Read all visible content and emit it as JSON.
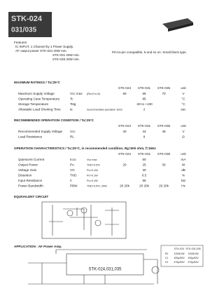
{
  "header": {
    "title": "STK-024",
    "subtitle": "031/035"
  },
  "features": {
    "heading": "Features",
    "items": [
      "IC INPUT, 1 Channel by 1 Power Supply.",
      "AF output power  STK-024  20W min.",
      "STK-031  25W min.",
      "STK-035  30W min."
    ],
    "note": "Pin-to-pin compatible, 6 and so on. Small block type."
  },
  "max_ratings": {
    "title": "MAXIMUM RATINGS / Ta=25°C",
    "columns": [
      "STK-024",
      "STK-031",
      "STK-035",
      "unit"
    ],
    "rows": [
      {
        "name": "Maximum Supply Voltage",
        "symbol": "Vcc max",
        "conditions": "(Rs=0 to 8)",
        "values": [
          "60",
          "56",
          "70"
        ],
        "unit": "V"
      },
      {
        "name": "Operating Case Temperature",
        "symbol": "Tc",
        "values": [
          "85"
        ],
        "unit": "°C"
      },
      {
        "name": "Storage Temperature",
        "symbol": "Tstg",
        "values": [
          "-30 to +100"
        ],
        "unit": "°C"
      },
      {
        "name": "Allowable Load Shorting Time",
        "symbol": "ts",
        "conditions": "recommended operation 1kHz",
        "values": [
          "2"
        ],
        "unit": "sec"
      }
    ]
  },
  "recommended": {
    "title": "RECOMMENDED OPERATION CONDITION / Ta=25°C",
    "columns": [
      "STK-024",
      "STK-031",
      "STK-035",
      "unit"
    ],
    "rows": [
      {
        "name": "Recommended Supply Voltage",
        "symbol": "Vcc",
        "values": [
          "40",
          "44",
          "48"
        ],
        "unit": "V"
      },
      {
        "name": "Load Resistance",
        "symbol": "RL",
        "values": [
          "8"
        ],
        "unit": "Ω"
      }
    ]
  },
  "operation": {
    "title": "OPERATION CHARACTERISTICS / Ta=25°C, in recommended condition, Rg=600 ohm, f=1kHz",
    "columns": [
      "STK-024",
      "STK-031",
      "STK-035",
      "unit"
    ],
    "rows": [
      {
        "name": "Quiescent Current",
        "symbol": "Icco",
        "conditions": "Vcc max",
        "values": [
          "60"
        ],
        "unit": "mA"
      },
      {
        "name": "Output Power",
        "symbol": "Po",
        "conditions": "THD=0.5%",
        "values": [
          "20",
          "25",
          "30"
        ],
        "unit": "W"
      },
      {
        "name": "Voltage Gain",
        "symbol": "VG",
        "conditions": "Po=0.1W",
        "values": [
          "30"
        ],
        "unit": "dB"
      },
      {
        "name": "Distortion",
        "symbol": "THD",
        "conditions": "Po=0.1W",
        "values": [
          "0.5"
        ],
        "unit": "%"
      },
      {
        "name": "Input Resistance",
        "symbol": "ri",
        "conditions": "Po=0.1W",
        "values": [
          "55"
        ],
        "unit": "kΩ"
      },
      {
        "name": "Power Bandwidth",
        "symbol": "PBW",
        "conditions": "THD=0.5%, 20W",
        "values": [
          "20 20k",
          "20 20k",
          "20 20k"
        ],
        "unit": "Hz"
      }
    ]
  },
  "equivalent_circuit": {
    "title": "EQUIVALENT CIRCUIT"
  },
  "application": {
    "title": "APPLICATION : AF Power Amp.",
    "label": "STK-024,031,035",
    "table": {
      "columns": [
        "STK-024",
        "STK-031,035"
      ],
      "rows": [
        [
          "R1",
          "100Ω/1W",
          "100Ω/1W"
        ],
        [
          "C1",
          "100μ/50V",
          "100μ/63V"
        ],
        [
          "C2",
          "470μ/50V",
          "470μ/63V"
        ]
      ]
    }
  }
}
